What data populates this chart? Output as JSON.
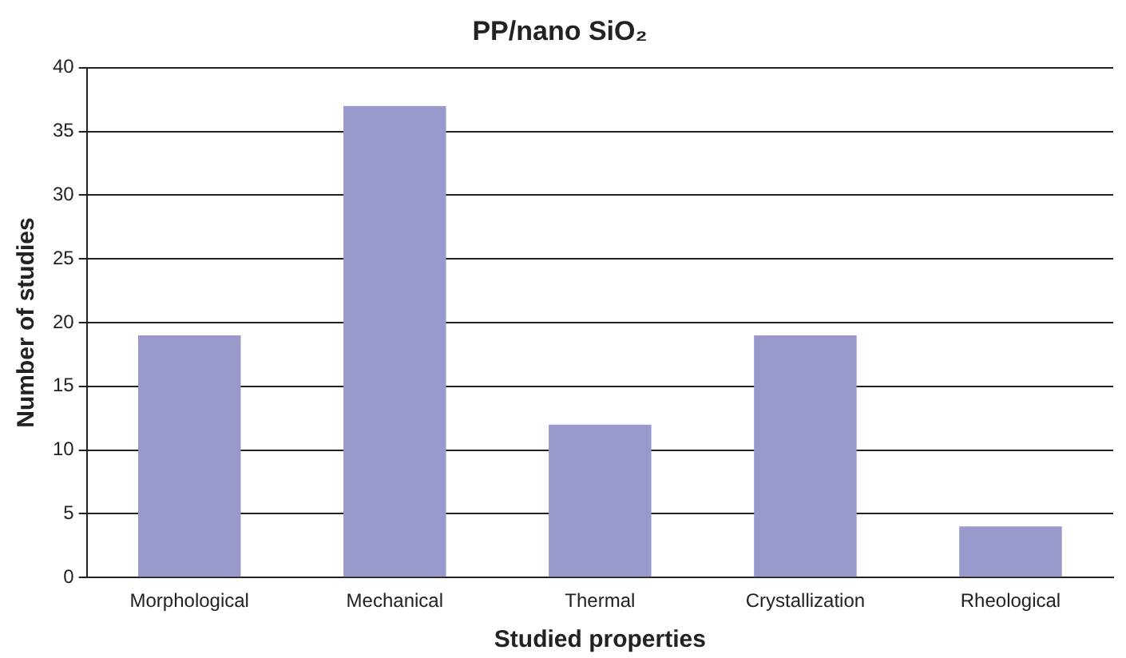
{
  "chart_data": {
    "type": "bar",
    "title": "PP/nano SiO₂",
    "xlabel": "Studied properties",
    "ylabel": "Number of studies",
    "categories": [
      "Morphological",
      "Mechanical",
      "Thermal",
      "Crystallization",
      "Rheological"
    ],
    "values": [
      19,
      37,
      12,
      19,
      4
    ],
    "color": "#9999cc",
    "ylim": [
      0,
      40
    ],
    "yticks": [
      0,
      5,
      10,
      15,
      20,
      25,
      30,
      35,
      40
    ],
    "grid": "y",
    "legend": false
  }
}
